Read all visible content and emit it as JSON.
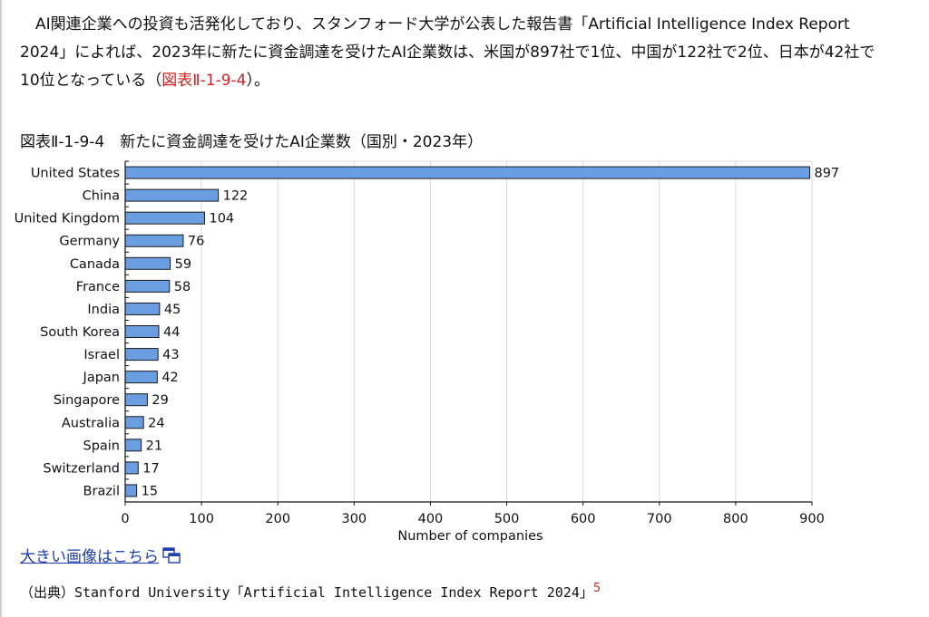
{
  "paragraph": {
    "text_before": "　AI関連企業への投資も活発化しており、スタンフォード大学が公表した報告書「Artificial Intelligence Index Report 2024」によれば、2023年に新たに資金調達を受けたAI企業数は、米国が897社で1位、中国が122社で2位、日本が42社で10位となっている（",
    "ref_link": "図表Ⅱ-1-9-4",
    "text_after": "）。"
  },
  "figure_title": "図表Ⅱ-1-9-4　新たに資金調達を受けたAI企業数（国別・2023年）",
  "chart_data": {
    "type": "bar",
    "orientation": "horizontal",
    "categories": [
      "United States",
      "China",
      "United Kingdom",
      "Germany",
      "Canada",
      "France",
      "India",
      "South Korea",
      "Israel",
      "Japan",
      "Singapore",
      "Australia",
      "Spain",
      "Switzerland",
      "Brazil"
    ],
    "values": [
      897,
      122,
      104,
      76,
      59,
      58,
      45,
      44,
      43,
      42,
      29,
      24,
      21,
      17,
      15
    ],
    "xlabel": "Number of companies",
    "ylabel": "",
    "xlim": [
      0,
      900
    ],
    "xticks": [
      0,
      100,
      200,
      300,
      400,
      500,
      600,
      700,
      800,
      900
    ],
    "grid": true,
    "bar_color": "#6b9ee0",
    "bar_edge_color": "#1a1a1a"
  },
  "large_image_link": "大きい画像はこちら",
  "source": {
    "text": "（出典）Stanford University「Artificial Intelligence Index Report 2024」",
    "footnote": "5"
  }
}
